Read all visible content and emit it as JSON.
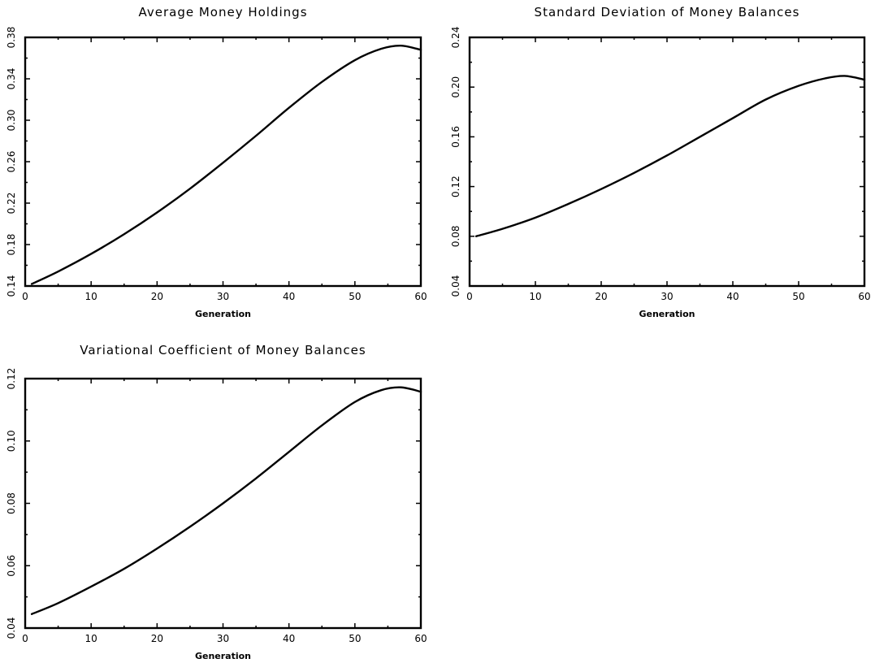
{
  "chart_data": [
    {
      "type": "line",
      "title": "Average Money Holdings",
      "xlabel": "Generation",
      "ylabel": "",
      "xlim": [
        0,
        60
      ],
      "ylim": [
        0.14,
        0.38
      ],
      "xticks": [
        "0",
        "10",
        "20",
        "30",
        "40",
        "50",
        "60"
      ],
      "yticks": [
        "0.14",
        "0.18",
        "0.22",
        "0.26",
        "0.30",
        "0.34",
        "0.38"
      ],
      "grid": false,
      "x": [
        1,
        5,
        10,
        15,
        20,
        25,
        30,
        35,
        40,
        45,
        50,
        54,
        57,
        60
      ],
      "y": [
        0.142,
        0.154,
        0.171,
        0.19,
        0.211,
        0.234,
        0.259,
        0.285,
        0.312,
        0.337,
        0.358,
        0.369,
        0.372,
        0.368
      ]
    },
    {
      "type": "line",
      "title": "Standard Deviation of Money Balances",
      "xlabel": "Generation",
      "ylabel": "",
      "xlim": [
        0,
        60
      ],
      "ylim": [
        0.04,
        0.24
      ],
      "xticks": [
        "0",
        "10",
        "20",
        "30",
        "40",
        "50",
        "60"
      ],
      "yticks": [
        "0.04",
        "0.08",
        "0.12",
        "0.16",
        "0.20",
        "0.24"
      ],
      "grid": false,
      "x": [
        1,
        5,
        10,
        15,
        20,
        25,
        30,
        35,
        40,
        45,
        50,
        54,
        57,
        60
      ],
      "y": [
        0.08,
        0.086,
        0.095,
        0.106,
        0.118,
        0.131,
        0.145,
        0.16,
        0.175,
        0.19,
        0.201,
        0.207,
        0.209,
        0.206
      ]
    },
    {
      "type": "line",
      "title": "Variational Coefficient of Money Balances",
      "xlabel": "Generation",
      "ylabel": "",
      "xlim": [
        0,
        60
      ],
      "ylim": [
        0.04,
        0.12
      ],
      "xticks": [
        "0",
        "10",
        "20",
        "30",
        "40",
        "50",
        "60"
      ],
      "yticks": [
        "0.04",
        "0.06",
        "0.08",
        "0.10",
        "0.12"
      ],
      "grid": false,
      "x": [
        1,
        5,
        10,
        15,
        20,
        25,
        30,
        35,
        40,
        45,
        50,
        54,
        57,
        60
      ],
      "y": [
        0.0445,
        0.048,
        0.0533,
        0.059,
        0.0655,
        0.0725,
        0.08,
        0.088,
        0.0965,
        0.105,
        0.1125,
        0.1163,
        0.1172,
        0.1158
      ]
    }
  ]
}
